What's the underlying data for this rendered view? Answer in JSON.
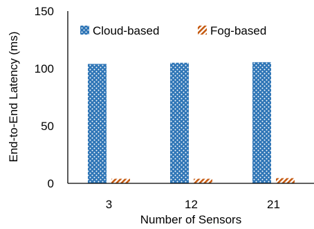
{
  "chart_data": {
    "type": "bar",
    "xlabel": "Number of Sensors",
    "ylabel": "End-to-End Latency (ms)",
    "categories": [
      "3",
      "12",
      "21"
    ],
    "ylim": [
      0,
      150
    ],
    "yticks": [
      0,
      50,
      100,
      150
    ],
    "grid": false,
    "legend_position": "top-left-inside",
    "series": [
      {
        "name": "Cloud-based",
        "values": [
          104,
          105,
          105.5
        ],
        "color": "#2e75b6",
        "pattern": "dots"
      },
      {
        "name": "Fog-based",
        "values": [
          4,
          4,
          4.5
        ],
        "color": "#c55a11",
        "pattern": "diagonal-hatch"
      }
    ]
  }
}
